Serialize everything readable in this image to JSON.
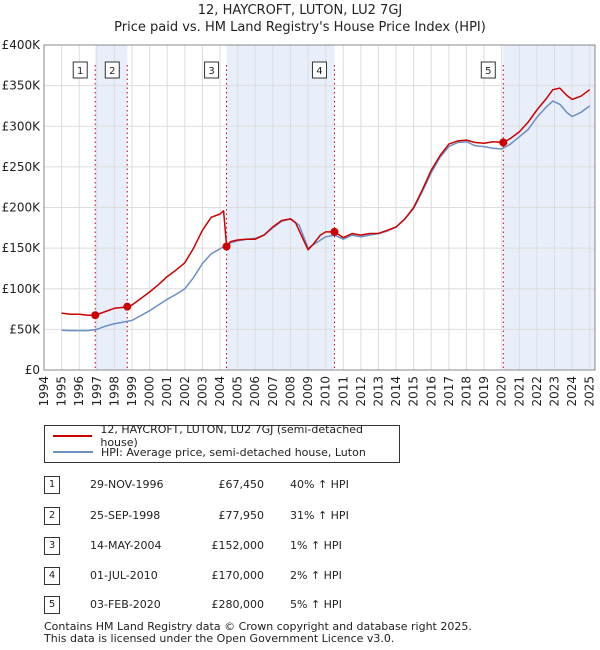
{
  "chart_data": {
    "type": "line",
    "title": "12, HAYCROFT, LUTON, LU2 7GJ",
    "subtitle": "Price paid vs. HM Land Registry's House Price Index (HPI)",
    "xlabel": "",
    "ylabel": "",
    "xlim": [
      1994,
      2025.3
    ],
    "ylim": [
      0,
      400000
    ],
    "grid": true,
    "y_ticks": [
      0,
      50000,
      100000,
      150000,
      200000,
      250000,
      300000,
      350000,
      400000
    ],
    "y_tick_labels": [
      "£0",
      "£50K",
      "£100K",
      "£150K",
      "£200K",
      "£250K",
      "£300K",
      "£350K",
      "£400K"
    ],
    "x_ticks": [
      1994,
      1995,
      1996,
      1997,
      1998,
      1999,
      2000,
      2001,
      2002,
      2003,
      2004,
      2005,
      2006,
      2007,
      2008,
      2009,
      2010,
      2011,
      2012,
      2013,
      2014,
      2015,
      2016,
      2017,
      2018,
      2019,
      2020,
      2021,
      2022,
      2023,
      2024,
      2025
    ],
    "x_tick_labels": [
      "1994",
      "1995",
      "1996",
      "1997",
      "1998",
      "1999",
      "2000",
      "2001",
      "2002",
      "2003",
      "2004",
      "2005",
      "2006",
      "2007",
      "2008",
      "2009",
      "2010",
      "2011",
      "2012",
      "2013",
      "2014",
      "2015",
      "2016",
      "2017",
      "2018",
      "2019",
      "2020",
      "2021",
      "2022",
      "2023",
      "2024",
      "2025"
    ],
    "highlight_bands": [
      [
        1996.91,
        1998.73
      ],
      [
        2004.37,
        2010.5
      ],
      [
        2020.09,
        2025.3
      ]
    ],
    "series": [
      {
        "name": "12, HAYCROFT, LUTON, LU2 7GJ (semi-detached house)",
        "color": "#cc0000",
        "x": [
          1995.0,
          1995.5,
          1996.0,
          1996.5,
          1996.91,
          1997.5,
          1998.0,
          1998.5,
          1998.73,
          1999.0,
          1999.5,
          2000.0,
          2000.5,
          2001.0,
          2001.5,
          2002.0,
          2002.5,
          2003.0,
          2003.5,
          2004.0,
          2004.2,
          2004.37,
          2004.6,
          2005.0,
          2005.5,
          2006.0,
          2006.5,
          2007.0,
          2007.5,
          2008.0,
          2008.3,
          2008.7,
          2009.0,
          2009.3,
          2009.7,
          2010.0,
          2010.5,
          2011.0,
          2011.5,
          2012.0,
          2012.5,
          2013.0,
          2013.5,
          2014.0,
          2014.5,
          2015.0,
          2015.5,
          2016.0,
          2016.5,
          2017.0,
          2017.5,
          2018.0,
          2018.5,
          2019.0,
          2019.5,
          2020.09,
          2020.5,
          2021.0,
          2021.5,
          2022.0,
          2022.5,
          2022.9,
          2023.3,
          2023.7,
          2024.0,
          2024.5,
          2025.0
        ],
        "values": [
          70000,
          68500,
          68500,
          67500,
          67450,
          72000,
          76000,
          77000,
          77950,
          80000,
          88000,
          96000,
          105000,
          115000,
          123000,
          132000,
          150000,
          172000,
          188000,
          192000,
          196000,
          152000,
          158000,
          160000,
          161000,
          161000,
          166000,
          176000,
          184000,
          186000,
          181000,
          162000,
          148000,
          155000,
          166000,
          170000,
          170000,
          163000,
          168000,
          166000,
          168000,
          168000,
          172000,
          176000,
          186000,
          200000,
          222000,
          246000,
          264000,
          278000,
          282000,
          283000,
          280000,
          279000,
          281000,
          280000,
          285000,
          293000,
          305000,
          320000,
          333000,
          345000,
          347000,
          338000,
          333000,
          337000,
          345000
        ]
      },
      {
        "name": "HPI: Average price, semi-detached house, Luton",
        "color": "#6a8fc4",
        "x": [
          1995.0,
          1995.5,
          1996.0,
          1996.5,
          1997.0,
          1997.5,
          1998.0,
          1998.5,
          1999.0,
          1999.5,
          2000.0,
          2000.5,
          2001.0,
          2001.5,
          2002.0,
          2002.5,
          2003.0,
          2003.5,
          2004.0,
          2004.5,
          2005.0,
          2005.5,
          2006.0,
          2006.5,
          2007.0,
          2007.5,
          2008.0,
          2008.5,
          2009.0,
          2009.5,
          2010.0,
          2010.5,
          2011.0,
          2011.5,
          2012.0,
          2012.5,
          2013.0,
          2013.5,
          2014.0,
          2014.5,
          2015.0,
          2015.5,
          2016.0,
          2016.5,
          2017.0,
          2017.5,
          2018.0,
          2018.5,
          2019.0,
          2019.5,
          2020.0,
          2020.5,
          2021.0,
          2021.5,
          2022.0,
          2022.5,
          2022.9,
          2023.3,
          2023.7,
          2024.0,
          2024.5,
          2025.0
        ],
        "values": [
          49000,
          48500,
          48500,
          48500,
          50000,
          54000,
          57000,
          59000,
          61000,
          67000,
          73000,
          80000,
          87000,
          93000,
          100000,
          114000,
          131000,
          143000,
          149000,
          156000,
          159000,
          161000,
          162000,
          166000,
          175000,
          183000,
          186000,
          178000,
          150000,
          157000,
          164000,
          166000,
          161000,
          166000,
          164000,
          166000,
          168000,
          171000,
          176000,
          186000,
          199000,
          220000,
          243000,
          262000,
          275000,
          280000,
          281000,
          276000,
          275000,
          273000,
          272000,
          278000,
          287000,
          296000,
          311000,
          323000,
          331000,
          327000,
          317000,
          312000,
          317000,
          325000
        ]
      }
    ],
    "sales": [
      {
        "n": "1",
        "x": 1996.91,
        "price": 67450
      },
      {
        "n": "2",
        "x": 1998.73,
        "price": 77950
      },
      {
        "n": "3",
        "x": 2004.37,
        "price": 152000
      },
      {
        "n": "4",
        "x": 2010.5,
        "price": 170000
      },
      {
        "n": "5",
        "x": 2020.09,
        "price": 280000
      }
    ]
  },
  "legend": {
    "property_label": "12, HAYCROFT, LUTON, LU2 7GJ (semi-detached house)",
    "hpi_label": "HPI: Average price, semi-detached house, Luton"
  },
  "transactions": [
    {
      "n": "1",
      "date": "29-NOV-1996",
      "price": "£67,450",
      "hpi": "40% ↑ HPI"
    },
    {
      "n": "2",
      "date": "25-SEP-1998",
      "price": "£77,950",
      "hpi": "31% ↑ HPI"
    },
    {
      "n": "3",
      "date": "14-MAY-2004",
      "price": "£152,000",
      "hpi": "1% ↑ HPI"
    },
    {
      "n": "4",
      "date": "01-JUL-2010",
      "price": "£170,000",
      "hpi": "2% ↑ HPI"
    },
    {
      "n": "5",
      "date": "03-FEB-2020",
      "price": "£280,000",
      "hpi": "5% ↑ HPI"
    }
  ],
  "footer": {
    "line1": "Contains HM Land Registry data © Crown copyright and database right 2025.",
    "line2": "This data is licensed under the Open Government Licence v3.0."
  }
}
